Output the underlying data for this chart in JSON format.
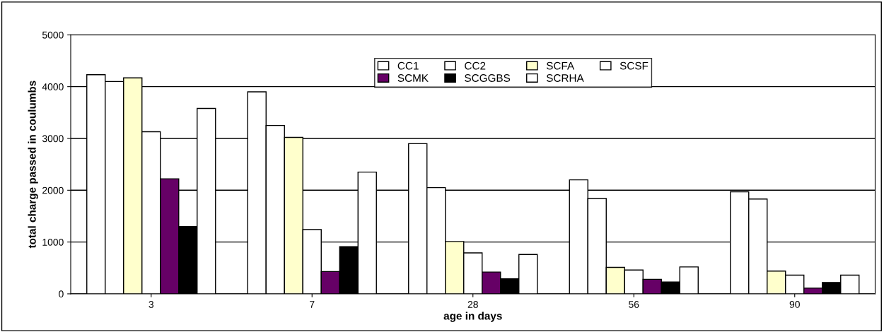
{
  "chart_data": {
    "type": "bar",
    "xlabel": "age in days",
    "ylabel": "total charge passed in coulumbs",
    "categories": [
      "3",
      "7",
      "28",
      "56",
      "90"
    ],
    "series": [
      {
        "name": "CC1",
        "color": "#ffffff",
        "values": [
          4230,
          3900,
          2900,
          2200,
          1970
        ]
      },
      {
        "name": "CC2",
        "color": "#ffffff",
        "values": [
          4100,
          3250,
          2050,
          1840,
          1830
        ]
      },
      {
        "name": "SCFA",
        "color": "#ffffcc",
        "values": [
          4170,
          3020,
          1010,
          510,
          440
        ]
      },
      {
        "name": "SCSF",
        "color": "#ffffff",
        "values": [
          3130,
          1240,
          790,
          460,
          360
        ]
      },
      {
        "name": "SCMK",
        "color": "#660066",
        "values": [
          2220,
          430,
          420,
          280,
          110
        ]
      },
      {
        "name": "SCGGBS",
        "color": "#000000",
        "values": [
          1300,
          910,
          290,
          230,
          220
        ]
      },
      {
        "name": "SCRHA",
        "color": "#ffffff",
        "values": [
          3580,
          2350,
          760,
          520,
          360
        ]
      }
    ],
    "ylim": [
      0,
      5000
    ],
    "yticks": [
      0,
      1000,
      2000,
      3000,
      4000,
      5000
    ],
    "grid": "y",
    "legend": "top"
  }
}
